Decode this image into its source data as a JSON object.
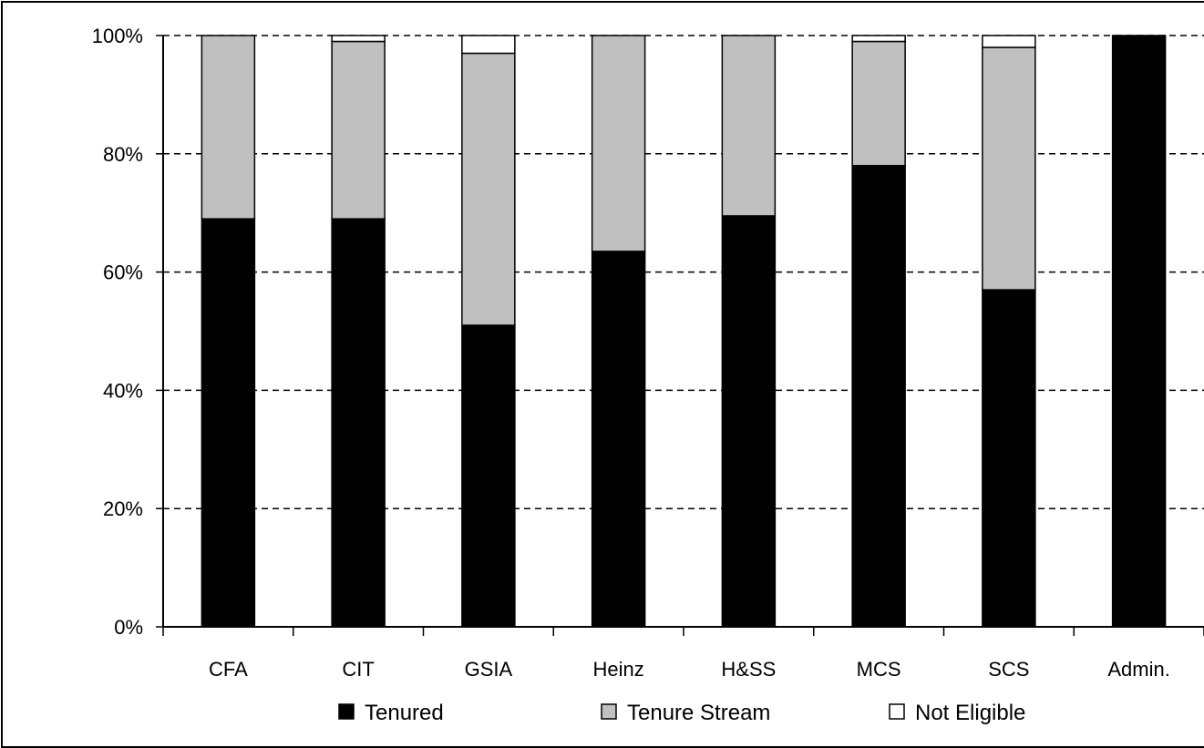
{
  "chart_data": {
    "type": "bar",
    "stacked": true,
    "categories": [
      "CFA",
      "CIT",
      "GSIA",
      "Heinz",
      "H&SS",
      "MCS",
      "SCS",
      "Admin."
    ],
    "series": [
      {
        "name": "Tenured",
        "color": "#000000",
        "values": [
          69,
          69,
          51,
          63.5,
          69.5,
          78,
          57,
          100
        ]
      },
      {
        "name": "Tenure Stream",
        "color": "#c0c0c0",
        "values": [
          31,
          30,
          46,
          36.5,
          30.5,
          21,
          41,
          0
        ]
      },
      {
        "name": "Not Eligible",
        "color": "#ffffff",
        "values": [
          0,
          1,
          3,
          0,
          0,
          1,
          2,
          0
        ]
      }
    ],
    "y_ticks": [
      "0%",
      "20%",
      "40%",
      "60%",
      "80%",
      "100%"
    ],
    "ylim": [
      0,
      100
    ],
    "grid": "horizontal dashed",
    "legend_position": "bottom"
  }
}
